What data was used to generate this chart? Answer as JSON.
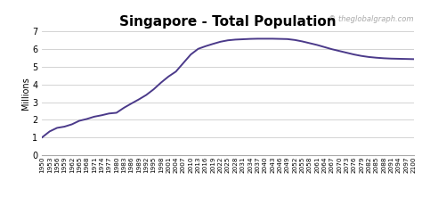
{
  "title": "Singapore - Total Population",
  "ylabel": "Millions",
  "watermark": "© theglobalgraph.com",
  "line_color": "#4b3a8a",
  "background_color": "#ffffff",
  "grid_color": "#cccccc",
  "ylim": [
    0,
    7
  ],
  "yticks": [
    0,
    1,
    2,
    3,
    4,
    5,
    6,
    7
  ],
  "years": [
    1950,
    1953,
    1956,
    1959,
    1962,
    1965,
    1968,
    1971,
    1974,
    1977,
    1980,
    1983,
    1986,
    1989,
    1992,
    1995,
    1998,
    2001,
    2004,
    2007,
    2010,
    2013,
    2016,
    2019,
    2022,
    2025,
    2028,
    2031,
    2034,
    2037,
    2040,
    2043,
    2046,
    2049,
    2052,
    2055,
    2058,
    2061,
    2064,
    2067,
    2070,
    2073,
    2076,
    2079,
    2082,
    2085,
    2088,
    2091,
    2094,
    2097,
    2100
  ],
  "values": [
    1.02,
    1.35,
    1.55,
    1.62,
    1.75,
    1.95,
    2.05,
    2.18,
    2.26,
    2.36,
    2.4,
    2.68,
    2.92,
    3.15,
    3.4,
    3.72,
    4.1,
    4.44,
    4.72,
    5.2,
    5.68,
    6.0,
    6.15,
    6.28,
    6.4,
    6.48,
    6.52,
    6.54,
    6.56,
    6.57,
    6.57,
    6.57,
    6.56,
    6.55,
    6.5,
    6.42,
    6.32,
    6.22,
    6.1,
    5.98,
    5.88,
    5.78,
    5.68,
    5.6,
    5.54,
    5.5,
    5.47,
    5.45,
    5.44,
    5.43,
    5.42
  ],
  "title_fontsize": 11,
  "ylabel_fontsize": 7,
  "ytick_fontsize": 7,
  "xtick_fontsize": 5.2,
  "watermark_fontsize": 6,
  "line_width": 1.4,
  "figsize": [
    4.74,
    2.49
  ],
  "dpi": 100
}
